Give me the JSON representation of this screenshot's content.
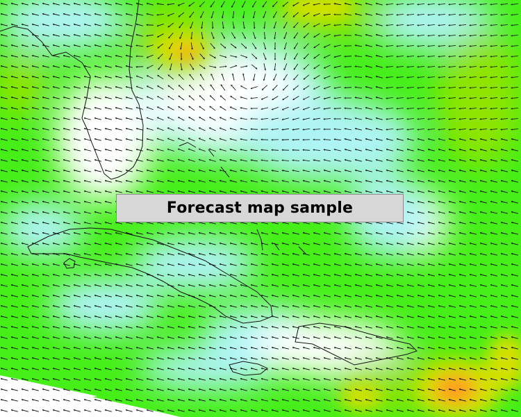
{
  "banner": {
    "text": "Forecast map sample"
  },
  "legend_colors": {
    "calm": "#ffffff",
    "light": "#aef4f4",
    "moderate": "#45ef17",
    "strong": "#8fe400",
    "stronger": "#d4e000",
    "strongest": "#ff9f1a"
  },
  "layers": {
    "wind_vectors": "arrow glyphs",
    "coastline": "black outline"
  }
}
